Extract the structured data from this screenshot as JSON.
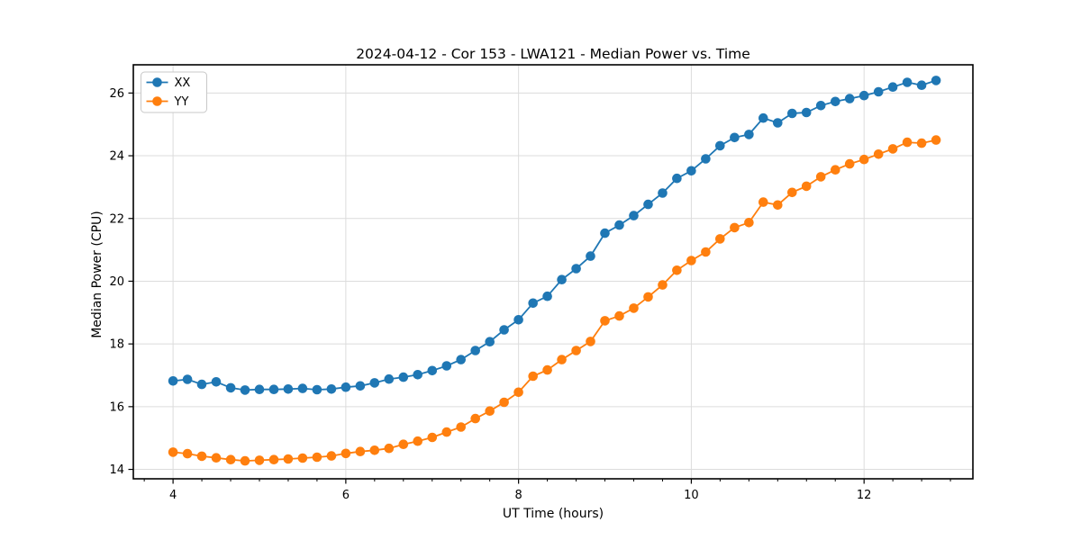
{
  "figure": {
    "title": "2024-04-12 - Cor 153 - LWA121 - Median Power vs. Time"
  },
  "chart_data": {
    "type": "line",
    "title": "2024-04-12 - Cor 153 - LWA121 - Median Power vs. Time",
    "xlabel": "UT Time (hours)",
    "ylabel": "Median Power (CPU)",
    "xlim": [
      3.54,
      13.26
    ],
    "ylim": [
      13.7,
      26.9
    ],
    "xticks": [
      4,
      6,
      8,
      10,
      12
    ],
    "yticks": [
      14,
      16,
      18,
      20,
      22,
      24,
      26
    ],
    "minor_xtick_step": 0.33333,
    "grid": true,
    "grid_color": "#dcdcdc",
    "legend_position": "upper-left",
    "x": [
      4.0,
      4.167,
      4.333,
      4.5,
      4.667,
      4.833,
      5.0,
      5.167,
      5.333,
      5.5,
      5.667,
      5.833,
      6.0,
      6.167,
      6.333,
      6.5,
      6.667,
      6.833,
      7.0,
      7.167,
      7.333,
      7.5,
      7.667,
      7.833,
      8.0,
      8.167,
      8.333,
      8.5,
      8.667,
      8.833,
      9.0,
      9.167,
      9.333,
      9.5,
      9.667,
      9.833,
      10.0,
      10.167,
      10.333,
      10.5,
      10.667,
      10.833,
      11.0,
      11.167,
      11.333,
      11.5,
      11.667,
      11.833,
      12.0,
      12.167,
      12.333,
      12.5,
      12.667,
      12.833
    ],
    "series": [
      {
        "name": "XX",
        "color": "#1f77b4",
        "values": [
          16.82,
          16.87,
          16.71,
          16.79,
          16.6,
          16.53,
          16.55,
          16.55,
          16.56,
          16.58,
          16.54,
          16.56,
          16.62,
          16.66,
          16.76,
          16.88,
          16.94,
          17.02,
          17.15,
          17.3,
          17.5,
          17.79,
          18.07,
          18.45,
          18.77,
          19.3,
          19.52,
          20.05,
          20.4,
          20.8,
          21.53,
          21.79,
          22.09,
          22.45,
          22.81,
          23.28,
          23.52,
          23.9,
          24.32,
          24.58,
          24.68,
          25.2,
          25.05,
          25.35,
          25.38,
          25.6,
          25.73,
          25.82,
          25.92,
          26.04,
          26.19,
          26.34,
          26.25,
          26.4
        ]
      },
      {
        "name": "YY",
        "color": "#ff7f0e",
        "values": [
          14.55,
          14.5,
          14.42,
          14.37,
          14.31,
          14.27,
          14.29,
          14.31,
          14.33,
          14.36,
          14.39,
          14.43,
          14.51,
          14.57,
          14.61,
          14.67,
          14.8,
          14.9,
          15.02,
          15.19,
          15.35,
          15.62,
          15.86,
          16.14,
          16.46,
          16.97,
          17.17,
          17.5,
          17.79,
          18.08,
          18.74,
          18.89,
          19.14,
          19.5,
          19.88,
          20.35,
          20.66,
          20.93,
          21.35,
          21.71,
          21.87,
          22.52,
          22.43,
          22.83,
          23.03,
          23.33,
          23.55,
          23.74,
          23.88,
          24.05,
          24.22,
          24.43,
          24.4,
          24.5
        ]
      }
    ]
  }
}
